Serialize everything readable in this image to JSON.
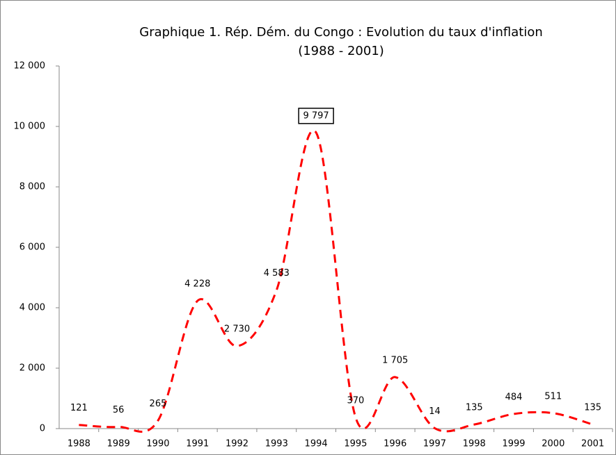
{
  "chart_data": {
    "type": "line",
    "title": "Graphique 1. Rép. Dém. du Congo : Evolution du taux d'inflation",
    "subtitle": "(1988 - 2001)",
    "categories": [
      "1988",
      "1989",
      "1990",
      "1991",
      "1992",
      "1993",
      "1994",
      "1995",
      "1996",
      "1997",
      "1998",
      "1999",
      "2000",
      "2001"
    ],
    "series": [
      {
        "color": "#ff0000",
        "values": [
          121,
          56,
          265,
          4228,
          2730,
          4583,
          9797,
          370,
          1705,
          14,
          135,
          484,
          511,
          135
        ],
        "value_labels": [
          "121",
          "56",
          "265",
          "4 228",
          "2 730",
          "4 583",
          "9 797",
          "370",
          "1 705",
          "14",
          "135",
          "484",
          "511",
          "135"
        ]
      }
    ],
    "ylim": [
      0,
      12000
    ],
    "yticks": [
      0,
      {
        "value": 2000,
        "label": "2 000"
      },
      {
        "value": 4000,
        "label": "4 000"
      },
      {
        "value": 6000,
        "label": "6 000"
      },
      {
        "value": 8000,
        "label": "8 000"
      },
      {
        "value": 10000,
        "label": "10 000"
      },
      {
        "value": 12000,
        "label": "12 000"
      }
    ],
    "line_style": "dashed",
    "smooth": true
  }
}
